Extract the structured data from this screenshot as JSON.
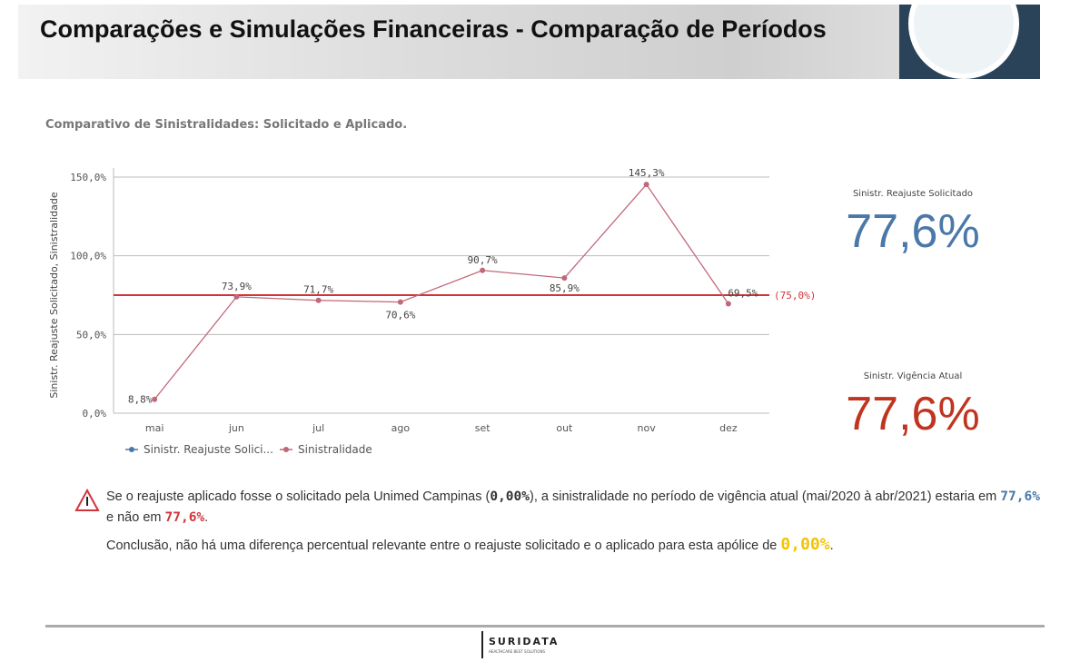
{
  "header": {
    "title": "Comparações e Simulações Financeiras - Comparação de Períodos"
  },
  "chart_data": {
    "type": "line",
    "title": "Comparativo de Sinistralidades: Solicitado e Aplicado.",
    "ylabel": "Sinistr. Reajuste Solicitado, Sinistralidade",
    "categories": [
      "mai",
      "jun",
      "jul",
      "ago",
      "set",
      "out",
      "nov",
      "dez"
    ],
    "series": [
      {
        "name": "Sinistr. Reajuste Solici...",
        "color": "#4a78a8",
        "values": [
          null,
          null,
          null,
          null,
          null,
          null,
          null,
          null
        ]
      },
      {
        "name": "Sinistralidade",
        "color": "#c0687a",
        "values": [
          8.8,
          73.9,
          71.7,
          70.6,
          90.7,
          85.9,
          145.3,
          69.5
        ],
        "value_labels": [
          "8,8%",
          "73,9%",
          "71,7%",
          "70,6%",
          "90,7%",
          "85,9%",
          "145,3%",
          "69,5%"
        ]
      }
    ],
    "reference_line": {
      "value": 75,
      "label": "(75,0%)",
      "color": "#d0343a"
    },
    "ylim": [
      0,
      150
    ],
    "yticks": [
      {
        "value": 0,
        "label": "0,0%"
      },
      {
        "value": 50,
        "label": "50,0%"
      },
      {
        "value": 100,
        "label": "100,0%"
      },
      {
        "value": 150,
        "label": "150,0%"
      }
    ],
    "grid": true
  },
  "kpis": [
    {
      "label": "Sinistr. Reajuste Solicitado",
      "value": "77,6%",
      "color": "#4a78a8"
    },
    {
      "label": "Sinistr. Vigência Atual",
      "value": "77,6%",
      "color": "#c0351f"
    }
  ],
  "notice": {
    "line1": [
      "Se o reajuste aplicado fosse o solicitado pela Unimed Campinas (",
      "0,00%",
      "), a sinistralidade no período de vigência atual (mai/2020 à abr/2021) estaria em ",
      "77,6%",
      " e não em ",
      "77,6%",
      "."
    ],
    "line2": [
      "Conclusão, não há uma diferença percentual relevante entre o reajuste solicitado e o aplicado para esta apólice de ",
      "0,00%",
      "."
    ]
  },
  "footer": {
    "brand": "SURIDATA",
    "tagline": "HEALTHCARE BEST SOLUTIONS"
  }
}
